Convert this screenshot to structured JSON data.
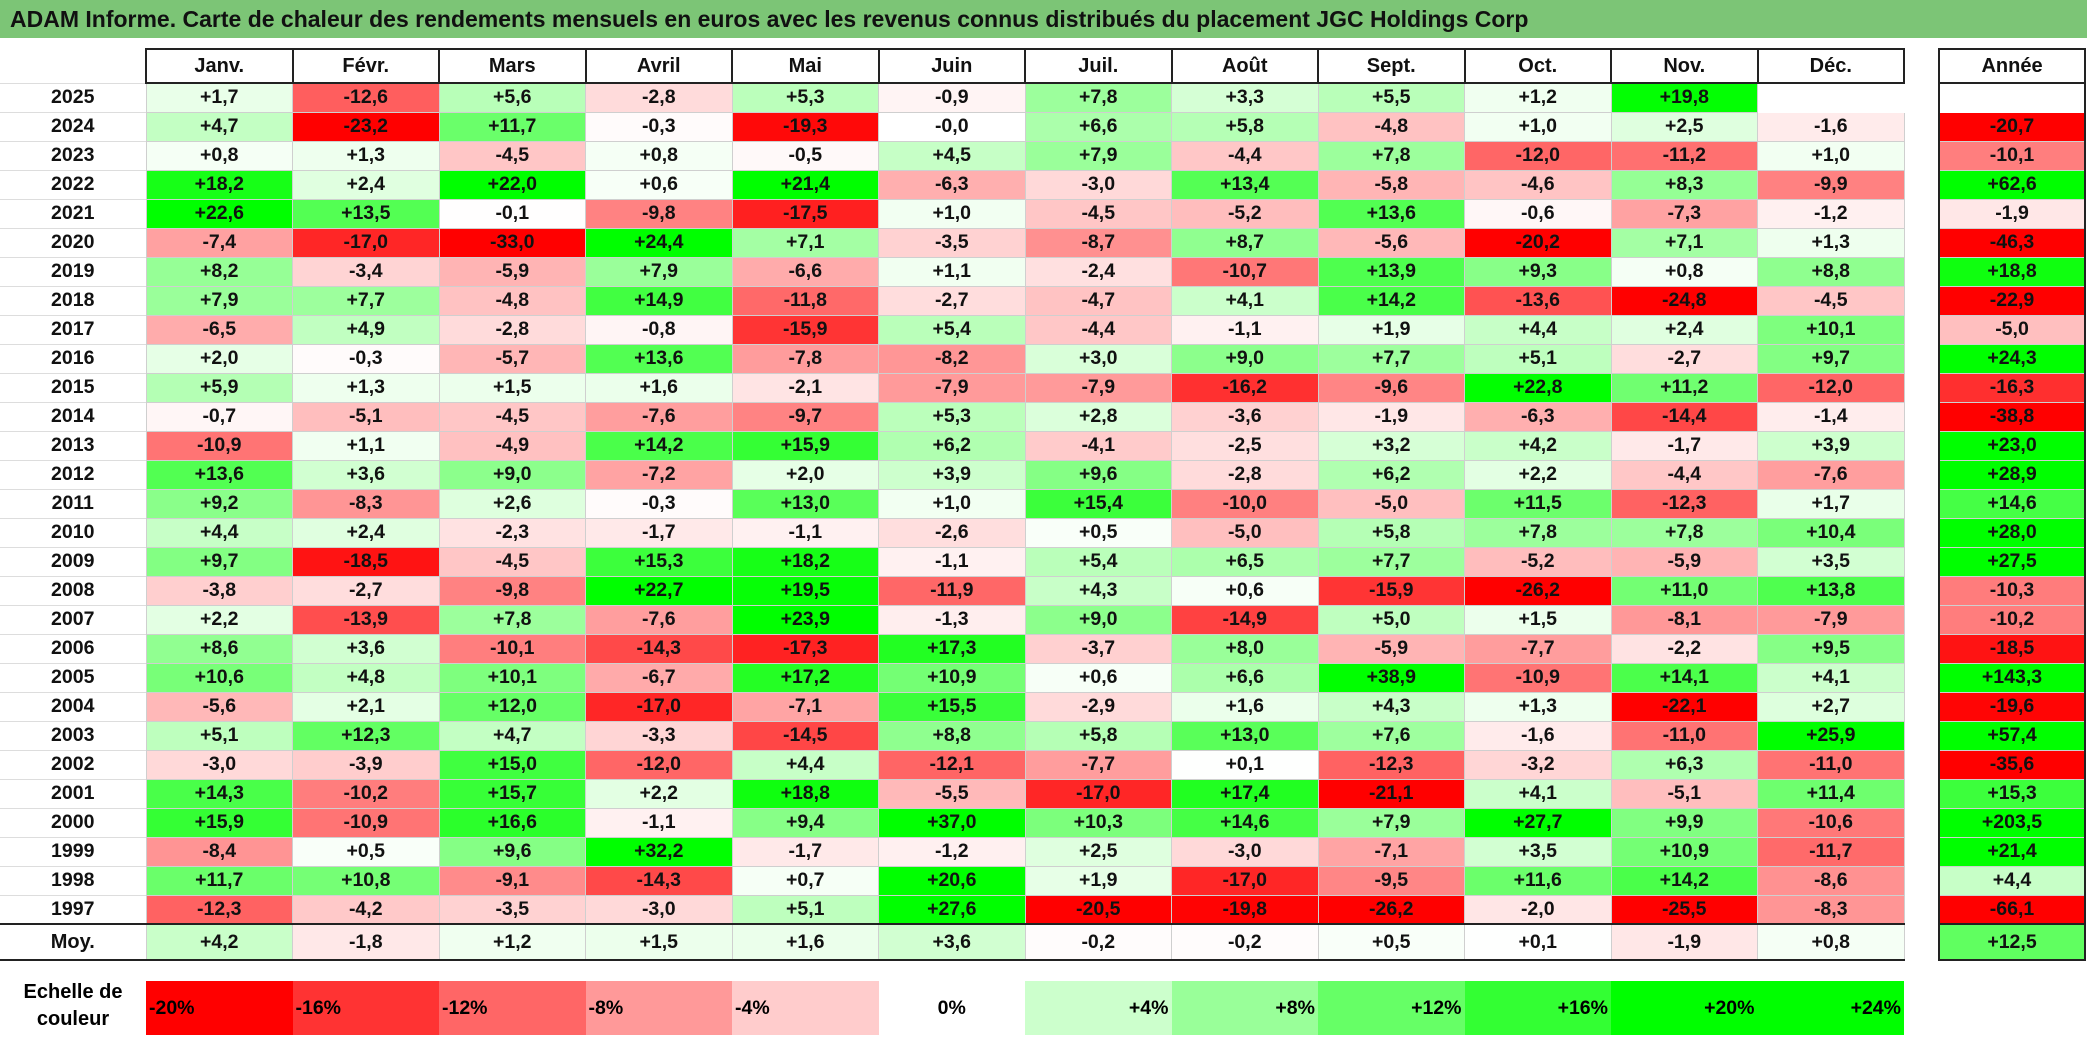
{
  "header": {
    "title": "ADAM Informe. Carte de chaleur des rendements mensuels en euros avec les revenus connus distribués du placement JGC Holdings Corp"
  },
  "chart_data": {
    "type": "heatmap",
    "title": "ADAM Informe. Carte de chaleur des rendements mensuels en euros avec les revenus connus distribués du placement JGC Holdings Corp",
    "columns": [
      "Janv.",
      "Févr.",
      "Mars",
      "Avril",
      "Mai",
      "Juin",
      "Juil.",
      "Août",
      "Sept.",
      "Oct.",
      "Nov.",
      "Déc."
    ],
    "annual_label": "Année",
    "rows": [
      {
        "year": "2025",
        "values": [
          1.7,
          -12.6,
          5.6,
          -2.8,
          5.3,
          -0.9,
          7.8,
          3.3,
          5.5,
          1.2,
          19.8,
          null
        ],
        "annual": null
      },
      {
        "year": "2024",
        "values": [
          4.7,
          -23.2,
          11.7,
          -0.3,
          -19.3,
          -0.0,
          6.6,
          5.8,
          -4.8,
          1.0,
          2.5,
          -1.6
        ],
        "annual": -20.7
      },
      {
        "year": "2023",
        "values": [
          0.8,
          1.3,
          -4.5,
          0.8,
          -0.5,
          4.5,
          7.9,
          -4.4,
          7.8,
          -12.0,
          -11.2,
          1.0
        ],
        "annual": -10.1
      },
      {
        "year": "2022",
        "values": [
          18.2,
          2.4,
          22.0,
          0.6,
          21.4,
          -6.3,
          -3.0,
          13.4,
          -5.8,
          -4.6,
          8.3,
          -9.9
        ],
        "annual": 62.6
      },
      {
        "year": "2021",
        "values": [
          22.6,
          13.5,
          -0.1,
          -9.8,
          -17.5,
          1.0,
          -4.5,
          -5.2,
          13.6,
          -0.6,
          -7.3,
          -1.2
        ],
        "annual": -1.9
      },
      {
        "year": "2020",
        "values": [
          -7.4,
          -17.0,
          -33.0,
          24.4,
          7.1,
          -3.5,
          -8.7,
          8.7,
          -5.6,
          -20.2,
          7.1,
          1.3
        ],
        "annual": -46.3
      },
      {
        "year": "2019",
        "values": [
          8.2,
          -3.4,
          -5.9,
          7.9,
          -6.6,
          1.1,
          -2.4,
          -10.7,
          13.9,
          9.3,
          0.8,
          8.8
        ],
        "annual": 18.8
      },
      {
        "year": "2018",
        "values": [
          7.9,
          7.7,
          -4.8,
          14.9,
          -11.8,
          -2.7,
          -4.7,
          4.1,
          14.2,
          -13.6,
          -24.8,
          -4.5
        ],
        "annual": -22.9
      },
      {
        "year": "2017",
        "values": [
          -6.5,
          4.9,
          -2.8,
          -0.8,
          -15.9,
          5.4,
          -4.4,
          -1.1,
          1.9,
          4.4,
          2.4,
          10.1
        ],
        "annual": -5.0
      },
      {
        "year": "2016",
        "values": [
          2.0,
          -0.3,
          -5.7,
          13.6,
          -7.8,
          -8.2,
          3.0,
          9.0,
          7.7,
          5.1,
          -2.7,
          9.7
        ],
        "annual": 24.3
      },
      {
        "year": "2015",
        "values": [
          5.9,
          1.3,
          1.5,
          1.6,
          -2.1,
          -7.9,
          -7.9,
          -16.2,
          -9.6,
          22.8,
          11.2,
          -12.0
        ],
        "annual": -16.3
      },
      {
        "year": "2014",
        "values": [
          -0.7,
          -5.1,
          -4.5,
          -7.6,
          -9.7,
          5.3,
          2.8,
          -3.6,
          -1.9,
          -6.3,
          -14.4,
          -1.4
        ],
        "annual": -38.8
      },
      {
        "year": "2013",
        "values": [
          -10.9,
          1.1,
          -4.9,
          14.2,
          15.9,
          6.2,
          -4.1,
          -2.5,
          3.2,
          4.2,
          -1.7,
          3.9
        ],
        "annual": 23.0
      },
      {
        "year": "2012",
        "values": [
          13.6,
          3.6,
          9.0,
          -7.2,
          2.0,
          3.9,
          9.6,
          -2.8,
          6.2,
          2.2,
          -4.4,
          -7.6
        ],
        "annual": 28.9
      },
      {
        "year": "2011",
        "values": [
          9.2,
          -8.3,
          2.6,
          -0.3,
          13.0,
          1.0,
          15.4,
          -10.0,
          -5.0,
          11.5,
          -12.3,
          1.7
        ],
        "annual": 14.6
      },
      {
        "year": "2010",
        "values": [
          4.4,
          2.4,
          -2.3,
          -1.7,
          -1.1,
          -2.6,
          0.5,
          -5.0,
          5.8,
          7.8,
          7.8,
          10.4
        ],
        "annual": 28.0
      },
      {
        "year": "2009",
        "values": [
          9.7,
          -18.5,
          -4.5,
          15.3,
          18.2,
          -1.1,
          5.4,
          6.5,
          7.7,
          -5.2,
          -5.9,
          3.5
        ],
        "annual": 27.5
      },
      {
        "year": "2008",
        "values": [
          -3.8,
          -2.7,
          -9.8,
          22.7,
          19.5,
          -11.9,
          4.3,
          0.6,
          -15.9,
          -26.2,
          11.0,
          13.8
        ],
        "annual": -10.3
      },
      {
        "year": "2007",
        "values": [
          2.2,
          -13.9,
          7.8,
          -7.6,
          23.9,
          -1.3,
          9.0,
          -14.9,
          5.0,
          1.5,
          -8.1,
          -7.9
        ],
        "annual": -10.2
      },
      {
        "year": "2006",
        "values": [
          8.6,
          3.6,
          -10.1,
          -14.3,
          -17.3,
          17.3,
          -3.7,
          8.0,
          -5.9,
          -7.7,
          -2.2,
          9.5
        ],
        "annual": -18.5
      },
      {
        "year": "2005",
        "values": [
          10.6,
          4.8,
          10.1,
          -6.7,
          17.2,
          10.9,
          0.6,
          6.6,
          38.9,
          -10.9,
          14.1,
          4.1
        ],
        "annual": 143.3
      },
      {
        "year": "2004",
        "values": [
          -5.6,
          2.1,
          12.0,
          -17.0,
          -7.1,
          15.5,
          -2.9,
          1.6,
          4.3,
          1.3,
          -22.1,
          2.7
        ],
        "annual": -19.6
      },
      {
        "year": "2003",
        "values": [
          5.1,
          12.3,
          4.7,
          -3.3,
          -14.5,
          8.8,
          5.8,
          13.0,
          7.6,
          -1.6,
          -11.0,
          25.9
        ],
        "annual": 57.4
      },
      {
        "year": "2002",
        "values": [
          -3.0,
          -3.9,
          15.0,
          -12.0,
          4.4,
          -12.1,
          -7.7,
          0.1,
          -12.3,
          -3.2,
          6.3,
          -11.0
        ],
        "annual": -35.6
      },
      {
        "year": "2001",
        "values": [
          14.3,
          -10.2,
          15.7,
          2.2,
          18.8,
          -5.5,
          -17.0,
          17.4,
          -21.1,
          4.1,
          -5.1,
          11.4
        ],
        "annual": 15.3
      },
      {
        "year": "2000",
        "values": [
          15.9,
          -10.9,
          16.6,
          -1.1,
          9.4,
          37.0,
          10.3,
          14.6,
          7.9,
          27.7,
          9.9,
          -10.6
        ],
        "annual": 203.5
      },
      {
        "year": "1999",
        "values": [
          -8.4,
          0.5,
          9.6,
          32.2,
          -1.7,
          -1.2,
          2.5,
          -3.0,
          -7.1,
          3.5,
          10.9,
          -11.7
        ],
        "annual": 21.4
      },
      {
        "year": "1998",
        "values": [
          11.7,
          10.8,
          -9.1,
          -14.3,
          0.7,
          20.6,
          1.9,
          -17.0,
          -9.5,
          11.6,
          14.2,
          -8.6
        ],
        "annual": 4.4
      },
      {
        "year": "1997",
        "values": [
          -12.3,
          -4.2,
          -3.5,
          -3.0,
          5.1,
          27.6,
          -20.5,
          -19.8,
          -26.2,
          -2.0,
          -25.5,
          -8.3
        ],
        "annual": -66.1
      }
    ],
    "average": {
      "label": "Moy.",
      "values": [
        4.2,
        -1.8,
        1.2,
        1.5,
        1.6,
        3.6,
        -0.2,
        -0.2,
        0.5,
        0.1,
        -1.9,
        0.8
      ],
      "annual": 12.5
    },
    "colorscale": {
      "label": "Echelle de couleur",
      "stops": [
        {
          "label": "-20%",
          "value": -20,
          "color": "#ff0000"
        },
        {
          "label": "-16%",
          "value": -16,
          "color": "#ff3333"
        },
        {
          "label": "-12%",
          "value": -12,
          "color": "#ff6666"
        },
        {
          "label": "-8%",
          "value": -8,
          "color": "#ff9999"
        },
        {
          "label": "-4%",
          "value": -4,
          "color": "#ffcccc"
        },
        {
          "label": "0%",
          "value": 0,
          "color": "#ffffff"
        },
        {
          "label": "+4%",
          "value": 4,
          "color": "#ccffcc"
        },
        {
          "label": "+8%",
          "value": 8,
          "color": "#99ff99"
        },
        {
          "label": "+12%",
          "value": 12,
          "color": "#66ff66"
        },
        {
          "label": "+16%",
          "value": 16,
          "color": "#33ff33"
        },
        {
          "label": "+20%",
          "value": 20,
          "color": "#00ff00"
        },
        {
          "label": "+24%",
          "value": 24,
          "color": "#00ff00"
        }
      ]
    }
  }
}
